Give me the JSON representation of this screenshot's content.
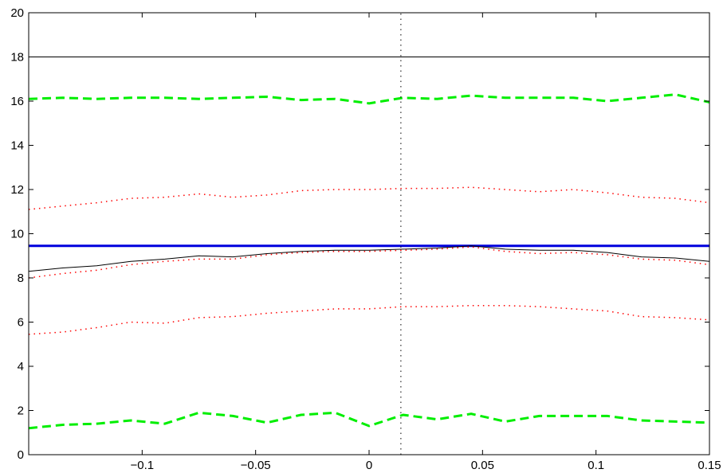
{
  "chart_data": {
    "type": "line",
    "title": "",
    "xlabel": "",
    "ylabel": "",
    "xlim": [
      -0.15,
      0.15
    ],
    "ylim": [
      0,
      20
    ],
    "grid": false,
    "legend": "none",
    "xticks": [
      -0.1,
      -0.05,
      0,
      0.05,
      0.1,
      0.15
    ],
    "xtick_labels": [
      "−0.1",
      "−0.05",
      "0",
      "0.05",
      "0.1",
      "0.15"
    ],
    "yticks": [
      0,
      2,
      4,
      6,
      8,
      10,
      12,
      14,
      16,
      18,
      20
    ],
    "ytick_labels": [
      "0",
      "2",
      "4",
      "6",
      "8",
      "10",
      "12",
      "14",
      "16",
      "18",
      "20"
    ],
    "series": [
      {
        "style": "solid",
        "color": "#000000",
        "width": 1,
        "x": [
          -0.15,
          0.15
        ],
        "y": [
          18,
          18
        ]
      },
      {
        "style": "dashed",
        "color": "#00ee00",
        "width": 3,
        "x": [
          -0.15,
          -0.135,
          -0.12,
          -0.105,
          -0.09,
          -0.075,
          -0.06,
          -0.045,
          -0.03,
          -0.015,
          0,
          0.015,
          0.03,
          0.045,
          0.06,
          0.075,
          0.09,
          0.105,
          0.12,
          0.135,
          0.15
        ],
        "y": [
          16.1,
          16.15,
          16.1,
          16.15,
          16.15,
          16.1,
          16.15,
          16.2,
          16.05,
          16.1,
          15.9,
          16.15,
          16.1,
          16.25,
          16.15,
          16.15,
          16.15,
          16.0,
          16.15,
          16.3,
          15.95
        ]
      },
      {
        "style": "dotted",
        "color": "#ff0000",
        "width": 1.5,
        "x": [
          -0.15,
          -0.135,
          -0.12,
          -0.105,
          -0.09,
          -0.075,
          -0.06,
          -0.045,
          -0.03,
          -0.015,
          0,
          0.015,
          0.03,
          0.045,
          0.06,
          0.075,
          0.09,
          0.105,
          0.12,
          0.135,
          0.15
        ],
        "y": [
          11.1,
          11.25,
          11.4,
          11.6,
          11.65,
          11.8,
          11.65,
          11.75,
          11.95,
          12.0,
          12.0,
          12.05,
          12.05,
          12.1,
          12.0,
          11.9,
          12.0,
          11.85,
          11.65,
          11.6,
          11.4
        ]
      },
      {
        "style": "solid",
        "color": "#0000dd",
        "width": 3,
        "x": [
          -0.15,
          0.15
        ],
        "y": [
          9.45,
          9.45
        ]
      },
      {
        "style": "solid",
        "color": "#000000",
        "width": 1,
        "x": [
          -0.15,
          -0.135,
          -0.12,
          -0.105,
          -0.09,
          -0.075,
          -0.06,
          -0.045,
          -0.03,
          -0.015,
          0,
          0.015,
          0.03,
          0.045,
          0.06,
          0.075,
          0.09,
          0.105,
          0.12,
          0.135,
          0.15
        ],
        "y": [
          8.3,
          8.45,
          8.55,
          8.75,
          8.85,
          9.0,
          8.95,
          9.1,
          9.2,
          9.25,
          9.25,
          9.3,
          9.35,
          9.45,
          9.3,
          9.25,
          9.25,
          9.15,
          8.95,
          8.9,
          8.75
        ]
      },
      {
        "style": "dotted",
        "color": "#ff0000",
        "width": 1.5,
        "x": [
          -0.15,
          -0.135,
          -0.12,
          -0.105,
          -0.09,
          -0.075,
          -0.06,
          -0.045,
          -0.03,
          -0.015,
          0,
          0.015,
          0.03,
          0.045,
          0.06,
          0.075,
          0.09,
          0.105,
          0.12,
          0.135,
          0.15
        ],
        "y": [
          8.0,
          8.2,
          8.35,
          8.6,
          8.75,
          8.85,
          8.85,
          9.05,
          9.15,
          9.2,
          9.2,
          9.25,
          9.3,
          9.4,
          9.2,
          9.1,
          9.15,
          9.05,
          8.85,
          8.8,
          8.6
        ]
      },
      {
        "style": "dotted",
        "color": "#ff0000",
        "width": 1.5,
        "x": [
          -0.15,
          -0.135,
          -0.12,
          -0.105,
          -0.09,
          -0.075,
          -0.06,
          -0.045,
          -0.03,
          -0.015,
          0,
          0.015,
          0.03,
          0.045,
          0.06,
          0.075,
          0.09,
          0.105,
          0.12,
          0.135,
          0.15
        ],
        "y": [
          5.45,
          5.55,
          5.75,
          6.0,
          5.95,
          6.2,
          6.25,
          6.4,
          6.5,
          6.6,
          6.6,
          6.7,
          6.7,
          6.75,
          6.75,
          6.7,
          6.6,
          6.5,
          6.25,
          6.2,
          6.1
        ]
      },
      {
        "style": "dashed",
        "color": "#00ee00",
        "width": 3,
        "x": [
          -0.15,
          -0.135,
          -0.12,
          -0.105,
          -0.09,
          -0.075,
          -0.06,
          -0.045,
          -0.03,
          -0.015,
          0,
          0.015,
          0.03,
          0.045,
          0.06,
          0.075,
          0.09,
          0.105,
          0.12,
          0.135,
          0.15
        ],
        "y": [
          1.2,
          1.35,
          1.4,
          1.55,
          1.4,
          1.9,
          1.75,
          1.45,
          1.8,
          1.9,
          1.3,
          1.8,
          1.6,
          1.85,
          1.5,
          1.75,
          1.75,
          1.75,
          1.55,
          1.5,
          1.45
        ]
      },
      {
        "style": "dotted",
        "color": "#000000",
        "width": 1,
        "x": [
          0.014,
          0.014
        ],
        "y": [
          0,
          20
        ]
      }
    ]
  }
}
